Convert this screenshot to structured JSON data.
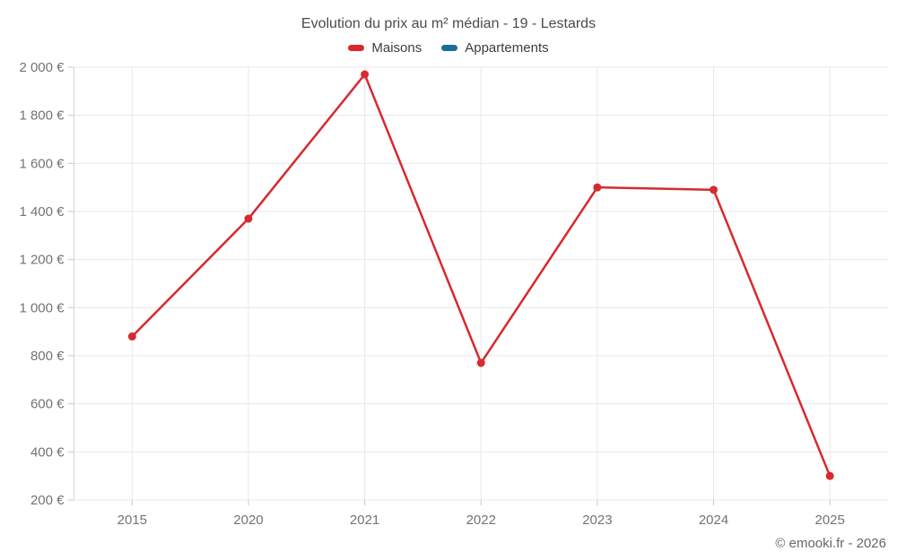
{
  "chart_data": {
    "type": "line",
    "title": "Evolution du prix au m² médian - 19 - Lestards",
    "categories": [
      "2015",
      "2020",
      "2021",
      "2022",
      "2023",
      "2024",
      "2025"
    ],
    "series": [
      {
        "name": "Maisons",
        "color": "#d7292f",
        "values": [
          880,
          1370,
          1970,
          770,
          1500,
          1490,
          300
        ]
      },
      {
        "name": "Appartements",
        "color": "#1c6d9c",
        "values": []
      }
    ],
    "xlabel": "",
    "ylabel": "",
    "ylim": [
      200,
      2000
    ],
    "ytick_step": 200,
    "ytick_labels": [
      "200 €",
      "400 €",
      "600 €",
      "800 €",
      "1 000 €",
      "1 200 €",
      "1 400 €",
      "1 600 €",
      "1 800 €",
      "2 000 €"
    ],
    "grid": true,
    "legend_position": "top",
    "currency_suffix": "€"
  },
  "legend": {
    "items": [
      {
        "label": "Maisons",
        "color": "#d7292f"
      },
      {
        "label": "Appartements",
        "color": "#1c6d9c"
      }
    ]
  },
  "footer": {
    "attribution": "© emooki.fr - 2026"
  },
  "colors": {
    "series_maisons": "#d7292f",
    "series_appartements": "#1c6d9c",
    "gridline": "#e8e8e8",
    "axis_line": "#d6d6d6",
    "tick_mark": "#c9c9c9",
    "tick_text": "#737373",
    "title_text": "#4a4a4a",
    "legend_text": "#3d3d3d",
    "attribution_text": "#666666",
    "background": "#ffffff"
  }
}
